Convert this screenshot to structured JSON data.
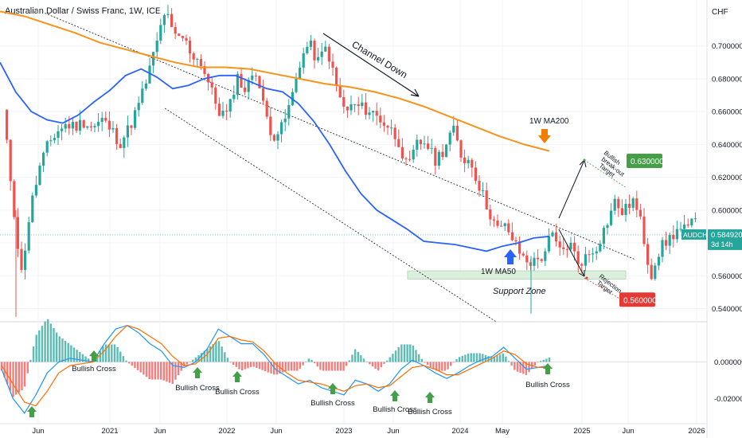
{
  "header": {
    "title": "Australian Dollar / Swiss Franc, 1W, ICE",
    "currency": "CHF"
  },
  "colors": {
    "up": "#26a69a",
    "down": "#ef5350",
    "ma50": "#2962ff",
    "ma200": "#f7931a",
    "target_up": "#43a047",
    "target_down": "#e53935",
    "arrow_green": "#43a047",
    "arrow_orange": "#f57c00",
    "arrow_blue": "#2962ff",
    "zone": "#dcefdc"
  },
  "chart_data": [
    {
      "type": "candlestick",
      "title": "Australian Dollar / Swiss Franc, 1W, ICE",
      "ylim": [
        0.532,
        0.728
      ],
      "yticks": [
        "0.540000",
        "0.560000",
        "0.580000",
        "0.600000",
        "0.620000",
        "0.640000",
        "0.660000",
        "0.680000",
        "0.700000"
      ],
      "x_ticks": [
        "Jun",
        "2021",
        "Jun",
        "2022",
        "Jun",
        "2023",
        "Jun",
        "2024",
        "May",
        "2025",
        "Jun",
        "2026"
      ],
      "price_path": [
        [
          0.66,
          0.61,
          0.56,
          0.6,
          0.625,
          0.64
        ],
        [
          0.648,
          0.652,
          0.651,
          0.654,
          0.65,
          0.655
        ],
        [
          0.649,
          0.641,
          0.65,
          0.663,
          0.68,
          0.7
        ],
        [
          0.722,
          0.705,
          0.705,
          0.695,
          0.69,
          0.675
        ],
        [
          0.66,
          0.658,
          0.682,
          0.672,
          0.688,
          0.662
        ],
        [
          0.645,
          0.65,
          0.666,
          0.69,
          0.702,
          0.69
        ],
        [
          0.7,
          0.676,
          0.66,
          0.664,
          0.662,
          0.66
        ],
        [
          0.655,
          0.65,
          0.642,
          0.624,
          0.64,
          0.642
        ],
        [
          0.63,
          0.637,
          0.65,
          0.632,
          0.63,
          0.614
        ],
        [
          0.6,
          0.588,
          0.59,
          0.578,
          0.57,
          0.568
        ],
        [
          0.572,
          0.585,
          0.574,
          0.58,
          0.568,
          0.572
        ],
        [
          0.578,
          0.59,
          0.605,
          0.598,
          0.607,
          0.591
        ],
        [
          0.56,
          0.576,
          0.582,
          0.588
        ],
        [
          0.588,
          0.593
        ]
      ],
      "price_seed": 11,
      "ma50": [
        0.69,
        0.672,
        0.66,
        0.655,
        0.653,
        0.658,
        0.666,
        0.673,
        0.682,
        0.686,
        0.681,
        0.674,
        0.676,
        0.68,
        0.682,
        0.682,
        0.678,
        0.674,
        0.672,
        0.665,
        0.654,
        0.64,
        0.624,
        0.61,
        0.6,
        0.594,
        0.588,
        0.581,
        0.58,
        0.579,
        0.577,
        0.575,
        0.578,
        0.58,
        0.583,
        0.584
      ],
      "ma200": [
        0.721,
        0.718,
        0.713,
        0.708,
        0.702,
        0.698,
        0.694,
        0.69,
        0.687,
        0.687,
        0.686,
        0.683,
        0.68,
        0.677,
        0.675,
        0.672,
        0.668,
        0.663,
        0.657,
        0.651,
        0.645,
        0.64,
        0.636
      ],
      "channel_upper": [
        [
          0.7,
          0.72
        ],
        [
          14.95,
          0.57
        ]
      ],
      "channel_lower": [
        [
          3.6,
          0.662
        ],
        [
          11.6,
          0.532
        ]
      ],
      "support_zone": [
        0.558,
        0.563
      ],
      "last_price": "0.584920",
      "last_label": "AUDCHF",
      "countdown": "3d 14h",
      "targets": [
        {
          "label": "0.630000",
          "value": 0.63
        },
        {
          "label": "0.560000",
          "value": 0.56
        }
      ]
    },
    {
      "type": "macd",
      "ylim": [
        -0.032,
        0.022
      ],
      "yticks": [
        "0.000000",
        "-0.020000"
      ],
      "macd": [
        -0.004,
        -0.02,
        -0.028,
        -0.018,
        -0.006,
        0.0,
        0.002,
        0.001,
        0.0,
        0.01,
        0.018,
        0.02,
        0.016,
        0.01,
        0.006,
        -0.002,
        -0.003,
        0.0,
        0.007,
        0.018,
        0.014,
        0.01,
        0.01,
        0.004,
        -0.004,
        -0.008,
        -0.012,
        -0.01,
        -0.014,
        -0.016,
        -0.018,
        -0.01,
        -0.012,
        -0.016,
        -0.012,
        -0.004,
        0.001,
        -0.002,
        -0.006,
        -0.009,
        -0.006,
        -0.002,
        0.001,
        0.003,
        0.008,
        0.002,
        -0.004,
        -0.003,
        -0.002
      ],
      "signal": [
        -0.002,
        -0.012,
        -0.022,
        -0.024,
        -0.016,
        -0.006,
        -0.002,
        -0.001,
        0.0,
        0.006,
        0.014,
        0.02,
        0.018,
        0.014,
        0.01,
        0.003,
        -0.002,
        -0.001,
        0.004,
        0.013,
        0.014,
        0.012,
        0.011,
        0.006,
        -0.001,
        -0.006,
        -0.01,
        -0.011,
        -0.012,
        -0.014,
        -0.016,
        -0.013,
        -0.012,
        -0.014,
        -0.013,
        -0.008,
        -0.003,
        -0.002,
        -0.004,
        -0.007,
        -0.007,
        -0.004,
        -0.001,
        0.002,
        0.006,
        0.004,
        -0.001,
        -0.003,
        -0.003
      ]
    }
  ],
  "annotations": {
    "channel": "Channel Down",
    "ma200_label": "1W MA200",
    "ma50_label": "1W MA50",
    "support": "Support Zone",
    "breakout": [
      "Bullish",
      "break-out",
      "Target"
    ],
    "rejection": [
      "Rejection",
      "Target"
    ],
    "bullish_cross": "Bullish Cross"
  }
}
